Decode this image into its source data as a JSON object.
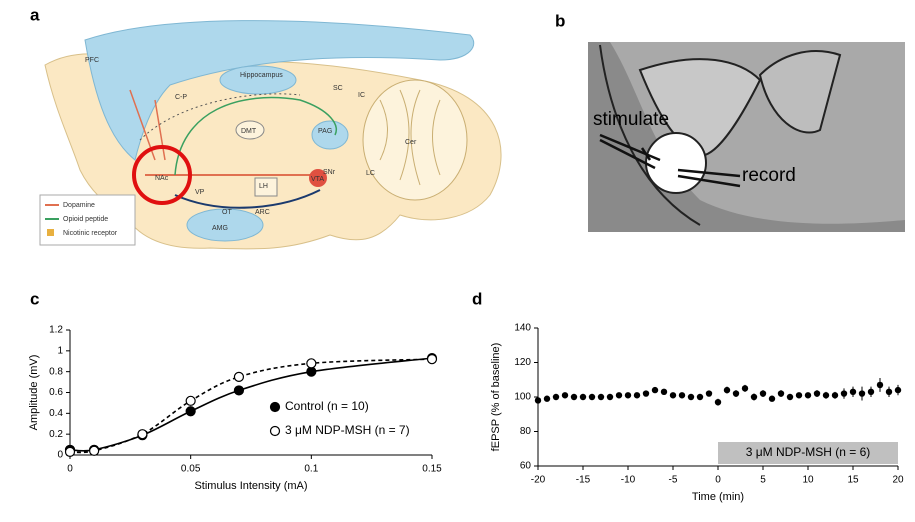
{
  "panel_a": {
    "letter": "a",
    "labels": [
      "PFC",
      "Hippocampus",
      "C-P",
      "SC",
      "IC",
      "DMT",
      "PAG",
      "Cer",
      "NAc",
      "VP",
      "LH",
      "VTA",
      "SNr",
      "LC",
      "OT",
      "ARC",
      "AMG"
    ],
    "legend": [
      "Dopamine",
      "Opioid peptide",
      "Nicotinic receptor"
    ]
  },
  "panel_b": {
    "letter": "b",
    "labels": [
      "stimulate",
      "record"
    ]
  },
  "chart_data": [
    {
      "type": "line",
      "panel": "c",
      "x": [
        0,
        0.01,
        0.03,
        0.05,
        0.07,
        0.1,
        0.15
      ],
      "series": [
        {
          "name": "Control (n = 10)",
          "color": "#000000",
          "fill": "#000000",
          "line_style": "solid",
          "values": [
            0.05,
            0.05,
            0.19,
            0.42,
            0.62,
            0.8,
            0.93
          ]
        },
        {
          "name": "3 μM NDP-MSH (n = 7)",
          "color": "#000000",
          "fill": "#ffffff",
          "line_style": "dashed",
          "values": [
            0.03,
            0.04,
            0.2,
            0.52,
            0.75,
            0.88,
            0.92
          ]
        }
      ],
      "xlabel": "Stimulus Intensity (mA)",
      "ylabel": "Amplitude (mV)",
      "xlim": [
        0,
        0.15
      ],
      "xticks": [
        0,
        0.05,
        0.1,
        0.15
      ],
      "ylim": [
        0,
        1.2
      ],
      "yticks": [
        0,
        0.2,
        0.4,
        0.6,
        0.8,
        1,
        1.2
      ]
    },
    {
      "type": "errorbar",
      "panel": "d",
      "color": "#000000",
      "x": [
        -20,
        -19,
        -18,
        -17,
        -16,
        -15,
        -14,
        -13,
        -12,
        -11,
        -10,
        -9,
        -8,
        -7,
        -6,
        -5,
        -4,
        -3,
        -2,
        -1,
        0,
        1,
        2,
        3,
        4,
        5,
        6,
        7,
        8,
        9,
        10,
        11,
        12,
        13,
        14,
        15,
        16,
        17,
        18,
        19,
        20
      ],
      "values": [
        98,
        99,
        100,
        101,
        100,
        100,
        100,
        100,
        100,
        101,
        101,
        101,
        102,
        104,
        103,
        101,
        101,
        100,
        100,
        102,
        97,
        104,
        102,
        105,
        100,
        102,
        99,
        102,
        100,
        101,
        101,
        102,
        101,
        101,
        102,
        103,
        102,
        103,
        107,
        103,
        104
      ],
      "errors": [
        2,
        1,
        1,
        1,
        1,
        1,
        1,
        1,
        1,
        1,
        1,
        1,
        1,
        1,
        1,
        1,
        1,
        1,
        1,
        1,
        2,
        2,
        2,
        2,
        2,
        2,
        1,
        2,
        1,
        1,
        1,
        2,
        2,
        2,
        3,
        3,
        4,
        3,
        4,
        3,
        3
      ],
      "shade": {
        "label": "3 μM NDP-MSH (n = 6)",
        "xlim": [
          0,
          20
        ],
        "color": "#c0c0c0"
      },
      "xlabel": "Time (min)",
      "ylabel": "fEPSP (% of baseline)",
      "xlim": [
        -20,
        20
      ],
      "xticks": [
        -20,
        -15,
        -10,
        -5,
        0,
        5,
        10,
        15,
        20
      ],
      "ylim": [
        60,
        140
      ],
      "yticks": [
        60,
        80,
        100,
        120,
        140
      ]
    }
  ]
}
